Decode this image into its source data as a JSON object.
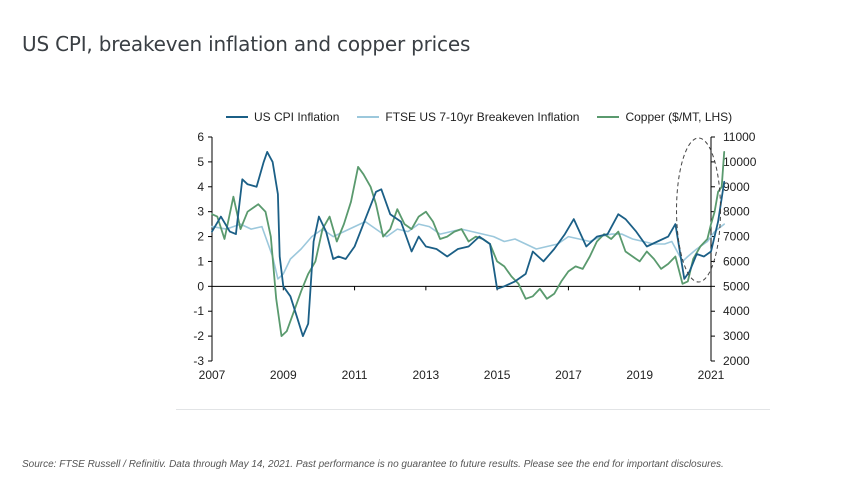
{
  "title": "US CPI, breakeven inflation and copper prices",
  "source": "Source: FTSE Russell / Refinitiv. Data through May 14, 2021. Past performance is no guarantee to future results. Please see the end for important disclosures.",
  "colors": {
    "cpi": "#1b5f86",
    "breakeven": "#9cc8dc",
    "copper": "#5a9a6e",
    "axis": "#000000"
  },
  "chart_data": {
    "type": "line",
    "x_range": [
      2007,
      2021
    ],
    "x_ticks": [
      "2007",
      "2009",
      "2011",
      "2013",
      "2015",
      "2017",
      "2019",
      "2021"
    ],
    "left_axis": {
      "range": [
        -3,
        6
      ],
      "ticks": [
        "-3",
        "-2",
        "-1",
        "0",
        "1",
        "2",
        "3",
        "4",
        "5",
        "6"
      ]
    },
    "right_axis": {
      "range": [
        2000,
        11000
      ],
      "ticks": [
        "2000",
        "3000",
        "4000",
        "5000",
        "6000",
        "7000",
        "8000",
        "9000",
        "10000",
        "11000"
      ]
    },
    "legend_position": "top",
    "annotation": "dashed ellipse around 2020-2021",
    "series": [
      {
        "name": "US CPI Inflation",
        "axis": "left",
        "color_key": "cpi",
        "x": [
          2007.0,
          2007.25,
          2007.5,
          2007.67,
          2007.85,
          2008.0,
          2008.25,
          2008.45,
          2008.55,
          2008.7,
          2008.85,
          2008.9,
          2009.0,
          2009.2,
          2009.4,
          2009.55,
          2009.7,
          2009.85,
          2010.0,
          2010.2,
          2010.4,
          2010.55,
          2010.75,
          2011.0,
          2011.3,
          2011.6,
          2011.75,
          2012.0,
          2012.3,
          2012.6,
          2012.8,
          2013.0,
          2013.3,
          2013.6,
          2013.9,
          2014.2,
          2014.5,
          2014.8,
          2015.0,
          2015.2,
          2015.5,
          2015.8,
          2016.0,
          2016.3,
          2016.6,
          2016.9,
          2017.15,
          2017.5,
          2017.8,
          2018.1,
          2018.4,
          2018.6,
          2018.9,
          2019.2,
          2019.5,
          2019.8,
          2020.0,
          2020.25,
          2020.4,
          2020.6,
          2020.8,
          2021.0,
          2021.2,
          2021.37
        ],
        "values": [
          2.2,
          2.8,
          2.2,
          2.1,
          4.3,
          4.1,
          4.0,
          5.0,
          5.4,
          5.0,
          3.7,
          1.2,
          0.0,
          -0.4,
          -1.3,
          -2.0,
          -1.5,
          1.8,
          2.8,
          2.2,
          1.1,
          1.2,
          1.1,
          1.6,
          2.7,
          3.8,
          3.9,
          2.9,
          2.6,
          1.4,
          2.0,
          1.6,
          1.5,
          1.2,
          1.5,
          1.6,
          2.0,
          1.7,
          -0.1,
          0.0,
          0.2,
          0.5,
          1.4,
          1.0,
          1.5,
          2.1,
          2.7,
          1.6,
          2.0,
          2.1,
          2.9,
          2.7,
          2.2,
          1.6,
          1.8,
          2.0,
          2.5,
          0.3,
          0.6,
          1.3,
          1.2,
          1.4,
          2.6,
          4.2
        ]
      },
      {
        "name": "FTSE US 7-10yr Breakeven Inflation",
        "axis": "left",
        "color_key": "breakeven",
        "x": [
          2007.0,
          2007.4,
          2007.8,
          2008.1,
          2008.4,
          2008.7,
          2008.85,
          2009.0,
          2009.2,
          2009.5,
          2009.8,
          2010.1,
          2010.4,
          2010.7,
          2011.0,
          2011.3,
          2011.6,
          2011.9,
          2012.2,
          2012.5,
          2012.8,
          2013.1,
          2013.4,
          2013.7,
          2014.0,
          2014.3,
          2014.6,
          2014.9,
          2015.2,
          2015.5,
          2015.8,
          2016.1,
          2016.4,
          2016.7,
          2017.0,
          2017.3,
          2017.6,
          2017.9,
          2018.2,
          2018.5,
          2018.8,
          2019.1,
          2019.4,
          2019.7,
          2019.9,
          2020.2,
          2020.35,
          2020.6,
          2020.9,
          2021.1,
          2021.37
        ],
        "values": [
          2.4,
          2.3,
          2.5,
          2.3,
          2.4,
          1.2,
          0.3,
          0.5,
          1.1,
          1.5,
          2.0,
          2.3,
          2.0,
          2.2,
          2.4,
          2.6,
          2.3,
          2.0,
          2.3,
          2.2,
          2.5,
          2.4,
          2.1,
          2.2,
          2.3,
          2.2,
          2.1,
          2.0,
          1.8,
          1.9,
          1.7,
          1.5,
          1.6,
          1.7,
          2.0,
          1.9,
          1.8,
          2.0,
          2.1,
          2.1,
          1.9,
          1.8,
          1.7,
          1.7,
          1.8,
          1.0,
          1.2,
          1.5,
          1.8,
          2.2,
          2.5
        ]
      },
      {
        "name": "Copper ($/MT, LHS)",
        "axis": "right",
        "color_key": "copper",
        "x": [
          2007.0,
          2007.15,
          2007.35,
          2007.6,
          2007.8,
          2008.0,
          2008.3,
          2008.5,
          2008.65,
          2008.8,
          2008.95,
          2009.1,
          2009.3,
          2009.5,
          2009.7,
          2009.9,
          2010.1,
          2010.3,
          2010.5,
          2010.7,
          2010.9,
          2011.1,
          2011.25,
          2011.45,
          2011.6,
          2011.8,
          2012.0,
          2012.2,
          2012.4,
          2012.6,
          2012.8,
          2013.0,
          2013.2,
          2013.4,
          2013.6,
          2013.8,
          2014.0,
          2014.2,
          2014.4,
          2014.6,
          2014.8,
          2015.0,
          2015.2,
          2015.4,
          2015.6,
          2015.8,
          2016.0,
          2016.2,
          2016.4,
          2016.6,
          2016.8,
          2017.0,
          2017.2,
          2017.4,
          2017.6,
          2017.8,
          2018.0,
          2018.2,
          2018.4,
          2018.6,
          2018.8,
          2019.0,
          2019.2,
          2019.4,
          2019.6,
          2019.8,
          2020.0,
          2020.2,
          2020.35,
          2020.5,
          2020.7,
          2020.9,
          2021.0,
          2021.1,
          2021.2,
          2021.3,
          2021.37
        ],
        "values": [
          7900,
          7800,
          6900,
          8600,
          7300,
          8000,
          8300,
          8000,
          7000,
          4500,
          3000,
          3200,
          4000,
          4800,
          5500,
          6000,
          7300,
          7800,
          6800,
          7500,
          8400,
          9800,
          9500,
          9000,
          8300,
          7000,
          7300,
          8100,
          7500,
          7300,
          7800,
          8000,
          7600,
          6900,
          7000,
          7200,
          7300,
          6800,
          7000,
          6900,
          6700,
          6000,
          5800,
          5400,
          5100,
          4500,
          4600,
          4900,
          4500,
          4700,
          5200,
          5600,
          5800,
          5700,
          6200,
          6800,
          7100,
          6900,
          7200,
          6400,
          6200,
          6000,
          6400,
          6100,
          5700,
          5900,
          6200,
          5100,
          5200,
          6100,
          6600,
          6900,
          7500,
          8000,
          8800,
          9000,
          10400
        ]
      }
    ]
  }
}
